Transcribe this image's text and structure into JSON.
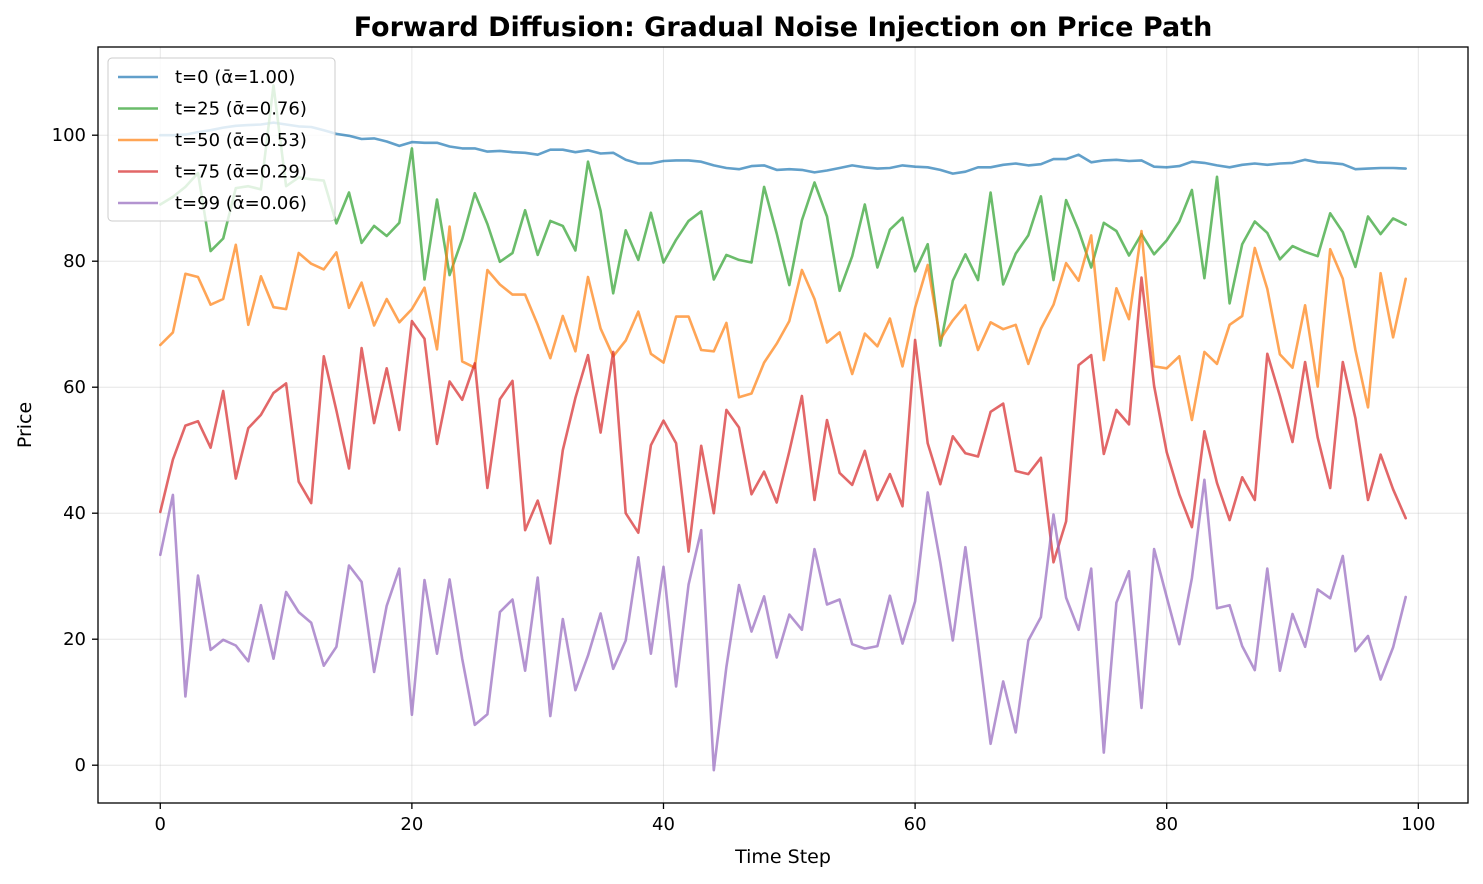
{
  "chart_data": {
    "type": "line",
    "title": "Forward Diffusion: Gradual Noise Injection on Price Path",
    "xlabel": "Time Step",
    "ylabel": "Price",
    "xlim": [
      -4.95,
      103.95
    ],
    "ylim": [
      -6,
      114
    ],
    "xticks": [
      0,
      20,
      40,
      60,
      80,
      100
    ],
    "yticks": [
      0,
      20,
      40,
      60,
      80,
      100
    ],
    "grid": true,
    "legend_position": "upper-left",
    "series": [
      {
        "name": "t=0 (ᾱ=1.00)",
        "color": "#1f77b4",
        "values": [
          100.0,
          100.0,
          100.1,
          100.5,
          100.8,
          101.2,
          101.5,
          101.6,
          101.7,
          102.0,
          101.7,
          101.4,
          101.3,
          100.8,
          100.2,
          99.9,
          99.4,
          99.5,
          99.0,
          98.3,
          98.9,
          98.8,
          98.8,
          98.2,
          97.9,
          97.9,
          97.4,
          97.5,
          97.3,
          97.2,
          96.9,
          97.7,
          97.7,
          97.3,
          97.6,
          97.1,
          97.2,
          96.1,
          95.5,
          95.5,
          95.9,
          96.0,
          96.0,
          95.8,
          95.2,
          94.8,
          94.6,
          95.1,
          95.2,
          94.5,
          94.6,
          94.5,
          94.1,
          94.4,
          94.8,
          95.2,
          94.9,
          94.7,
          94.8,
          95.2,
          95.0,
          94.9,
          94.5,
          93.9,
          94.2,
          94.9,
          94.9,
          95.3,
          95.5,
          95.2,
          95.4,
          96.2,
          96.2,
          96.9,
          95.7,
          96.0,
          96.1,
          95.9,
          96.0,
          95.0,
          94.9,
          95.1,
          95.8,
          95.6,
          95.2,
          94.9,
          95.3,
          95.5,
          95.3,
          95.5,
          95.6,
          96.1,
          95.7,
          95.6,
          95.4,
          94.6,
          94.7,
          94.8,
          94.8,
          94.7
        ]
      },
      {
        "name": "t=25 (ᾱ=0.76)",
        "color": "#2ca02c",
        "values": [
          89.0,
          90.2,
          91.8,
          94.0,
          81.6,
          83.6,
          91.6,
          91.9,
          91.4,
          107.9,
          91.9,
          93.3,
          93.0,
          92.8,
          86.0,
          90.9,
          82.9,
          85.6,
          84.0,
          86.1,
          97.9,
          77.1,
          89.8,
          77.8,
          83.5,
          90.8,
          85.9,
          79.9,
          81.3,
          88.1,
          81.0,
          86.4,
          85.6,
          81.7,
          95.8,
          88.0,
          74.9,
          84.9,
          80.2,
          87.7,
          79.8,
          83.4,
          86.4,
          87.9,
          77.1,
          81.0,
          80.2,
          79.8,
          91.8,
          84.4,
          76.2,
          86.5,
          92.5,
          87.1,
          75.3,
          80.8,
          89.0,
          79.0,
          85.0,
          86.9,
          78.4,
          82.7,
          66.6,
          76.9,
          81.1,
          77.0,
          90.9,
          76.3,
          81.2,
          84.1,
          90.3,
          77.0,
          89.7,
          84.9,
          79.0,
          86.1,
          84.8,
          80.9,
          84.3,
          81.1,
          83.3,
          86.3,
          91.3,
          77.3,
          93.4,
          73.3,
          82.7,
          86.3,
          84.5,
          80.3,
          82.4,
          81.5,
          80.8,
          87.6,
          84.6,
          79.1,
          87.1,
          84.3,
          86.8,
          85.8
        ]
      },
      {
        "name": "t=50 (ᾱ=0.53)",
        "color": "#ff7f0e",
        "values": [
          66.7,
          68.7,
          78.0,
          77.5,
          73.1,
          74.0,
          82.6,
          69.9,
          77.6,
          72.7,
          72.4,
          81.3,
          79.6,
          78.7,
          81.4,
          72.6,
          76.6,
          69.8,
          74.0,
          70.3,
          72.4,
          75.8,
          66.0,
          85.5,
          64.1,
          63.1,
          78.6,
          76.3,
          74.7,
          74.7,
          69.9,
          64.6,
          71.3,
          65.7,
          77.5,
          69.3,
          64.9,
          67.4,
          72.0,
          65.3,
          63.9,
          71.2,
          71.2,
          65.9,
          65.7,
          70.2,
          58.4,
          59.0,
          63.9,
          66.9,
          70.5,
          78.6,
          74.0,
          67.1,
          68.7,
          62.1,
          68.5,
          66.5,
          70.9,
          63.3,
          72.6,
          79.4,
          67.6,
          70.6,
          73.0,
          65.9,
          70.3,
          69.2,
          69.9,
          63.7,
          69.3,
          73.1,
          79.7,
          76.9,
          84.1,
          64.3,
          75.7,
          70.8,
          84.8,
          63.3,
          63.0,
          64.9,
          54.8,
          65.6,
          63.7,
          69.9,
          71.3,
          82.1,
          75.6,
          65.2,
          63.1,
          73.0,
          60.1,
          81.9,
          77.2,
          65.9,
          56.8,
          78.1,
          67.9,
          77.2
        ]
      },
      {
        "name": "t=75 (ᾱ=0.29)",
        "color": "#d62728",
        "values": [
          40.2,
          48.5,
          53.9,
          54.6,
          50.4,
          59.4,
          45.5,
          53.5,
          55.6,
          59.1,
          60.6,
          45.0,
          41.6,
          64.9,
          56.3,
          47.1,
          66.2,
          54.3,
          63.0,
          53.2,
          70.5,
          67.7,
          51.0,
          60.9,
          58.0,
          63.8,
          44.0,
          58.1,
          61.0,
          37.3,
          42.0,
          35.2,
          50.0,
          58.3,
          65.1,
          52.8,
          65.6,
          40.0,
          36.9,
          50.8,
          54.7,
          51.1,
          33.9,
          50.7,
          40.0,
          56.4,
          53.6,
          43.0,
          46.6,
          41.7,
          49.8,
          58.6,
          42.1,
          54.8,
          46.4,
          44.5,
          49.9,
          42.1,
          46.2,
          41.1,
          67.5,
          51.1,
          44.6,
          52.2,
          49.5,
          49.0,
          56.1,
          57.4,
          46.7,
          46.2,
          48.8,
          32.2,
          38.7,
          63.5,
          65.1,
          49.4,
          56.4,
          54.1,
          77.4,
          60.2,
          49.7,
          43.0,
          37.8,
          53.0,
          44.8,
          38.9,
          45.7,
          42.1,
          65.3,
          58.6,
          51.3,
          64.0,
          52.0,
          44.0,
          64.0,
          55.1,
          42.1,
          49.3,
          43.8,
          39.2
        ]
      },
      {
        "name": "t=99 (ᾱ=0.06)",
        "color": "#9467bd",
        "values": [
          33.4,
          42.9,
          10.9,
          30.1,
          18.3,
          19.9,
          19.0,
          16.5,
          25.4,
          16.9,
          27.5,
          24.3,
          22.6,
          15.8,
          18.8,
          31.7,
          29.1,
          14.8,
          25.3,
          31.2,
          8.0,
          29.4,
          17.7,
          29.5,
          16.9,
          6.4,
          8.1,
          24.3,
          26.3,
          15.0,
          29.8,
          7.8,
          23.2,
          11.9,
          17.4,
          24.1,
          15.3,
          19.8,
          33.0,
          17.7,
          31.5,
          12.5,
          28.7,
          37.3,
          -0.8,
          15.6,
          28.6,
          21.2,
          26.8,
          17.1,
          23.9,
          21.5,
          34.3,
          25.5,
          26.3,
          19.2,
          18.5,
          18.9,
          26.9,
          19.3,
          26.0,
          43.3,
          32.2,
          19.8,
          34.6,
          19.3,
          3.4,
          13.3,
          5.2,
          19.8,
          23.5,
          39.8,
          26.6,
          21.5,
          31.2,
          2.0,
          25.8,
          30.8,
          9.1,
          34.3,
          26.7,
          19.2,
          29.7,
          45.3,
          24.9,
          25.4,
          18.9,
          15.1,
          31.2,
          15.0,
          24.0,
          18.8,
          27.9,
          26.5,
          33.2,
          18.1,
          20.5,
          13.6,
          18.7,
          26.7
        ]
      }
    ]
  }
}
